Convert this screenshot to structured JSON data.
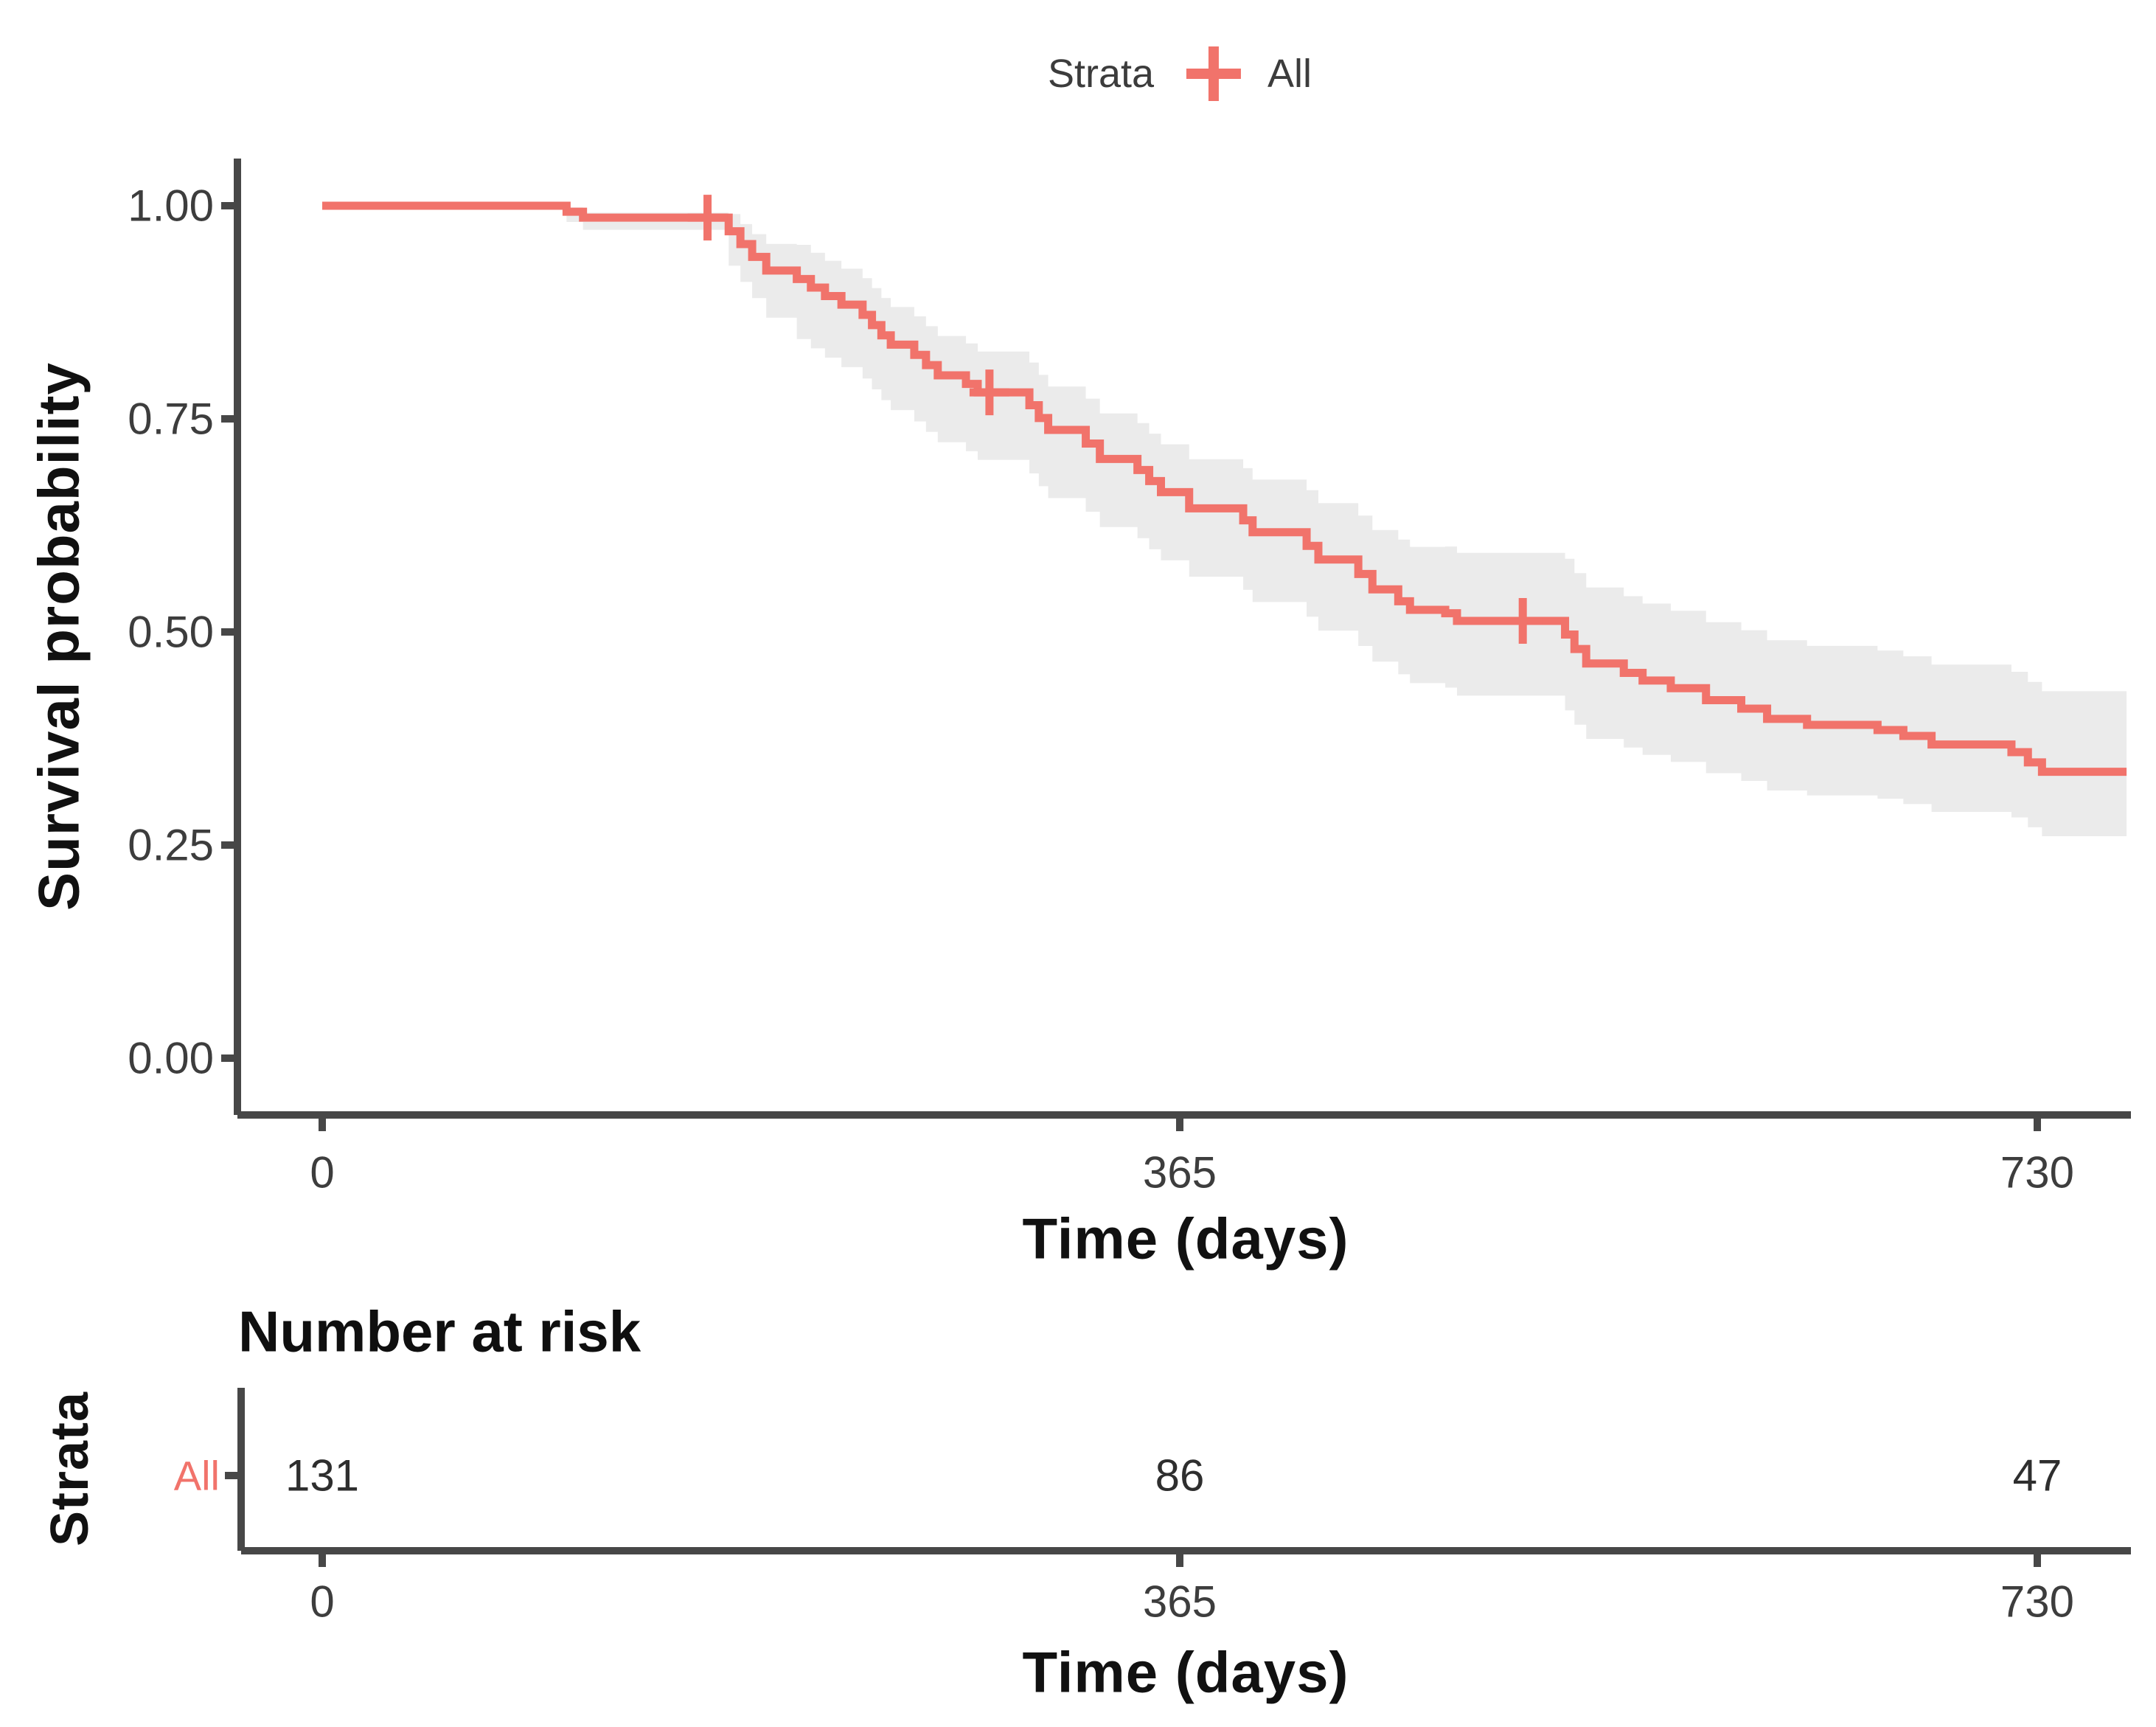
{
  "legend": {
    "title": "Strata",
    "items": [
      {
        "label": "All",
        "symbol": "plus",
        "color": "#f1736b"
      }
    ]
  },
  "y_axis": {
    "title": "Survival probability",
    "tick_labels": [
      "1.00",
      "0.75",
      "0.50",
      "0.25",
      "0.00"
    ],
    "tick_values": [
      1.0,
      0.75,
      0.5,
      0.25,
      0.0
    ]
  },
  "x_axis": {
    "title": "Time (days)",
    "tick_labels": [
      "0",
      "365",
      "730"
    ],
    "tick_values": [
      0,
      365,
      730
    ]
  },
  "risk_table": {
    "title": "Number at risk",
    "y_label": "Strata",
    "rows": [
      {
        "label": "All",
        "color": "#f1736b",
        "values": [
          "131",
          "86",
          "47"
        ]
      }
    ],
    "x_axis": {
      "title": "Time (days)",
      "tick_labels": [
        "0",
        "365",
        "730"
      ],
      "tick_values": [
        0,
        365,
        730
      ]
    }
  },
  "chart_data": {
    "type": "line",
    "subtype": "kaplan-meier-step",
    "title": "",
    "xlabel": "Time (days)",
    "ylabel": "Survival probability",
    "xlim": [
      0,
      768
    ],
    "ylim": [
      0,
      1
    ],
    "x_ticks": [
      0,
      365,
      730
    ],
    "y_ticks": [
      1.0,
      0.75,
      0.5,
      0.25,
      0.0
    ],
    "grid": false,
    "legend_position": "top",
    "series": [
      {
        "name": "All",
        "color": "#f1736b",
        "end_time": 768,
        "points": [
          [
            0,
            1.0
          ],
          [
            104,
            0.993
          ],
          [
            111,
            0.986
          ],
          [
            173,
            0.97
          ],
          [
            178,
            0.955
          ],
          [
            183,
            0.94
          ],
          [
            189,
            0.924
          ],
          [
            202,
            0.914
          ],
          [
            208,
            0.904
          ],
          [
            214,
            0.894
          ],
          [
            221,
            0.884
          ],
          [
            230,
            0.872
          ],
          [
            234,
            0.86
          ],
          [
            238,
            0.848
          ],
          [
            242,
            0.837
          ],
          [
            252,
            0.825
          ],
          [
            257,
            0.813
          ],
          [
            262,
            0.801
          ],
          [
            274,
            0.791
          ],
          [
            279,
            0.781
          ],
          [
            301,
            0.766
          ],
          [
            305,
            0.751
          ],
          [
            309,
            0.737
          ],
          [
            325,
            0.721
          ],
          [
            331,
            0.703
          ],
          [
            347,
            0.69
          ],
          [
            352,
            0.677
          ],
          [
            357,
            0.664
          ],
          [
            369,
            0.645
          ],
          [
            392,
            0.631
          ],
          [
            396,
            0.617
          ],
          [
            419,
            0.601
          ],
          [
            424,
            0.585
          ],
          [
            441,
            0.568
          ],
          [
            447,
            0.55
          ],
          [
            458,
            0.536
          ],
          [
            463,
            0.526
          ],
          [
            478,
            0.522
          ],
          [
            483,
            0.513
          ],
          [
            529,
            0.497
          ],
          [
            533,
            0.48
          ],
          [
            538,
            0.463
          ],
          [
            554,
            0.452
          ],
          [
            562,
            0.443
          ],
          [
            574,
            0.434
          ],
          [
            589,
            0.42
          ],
          [
            604,
            0.41
          ],
          [
            615,
            0.398
          ],
          [
            632,
            0.391
          ],
          [
            662,
            0.385
          ],
          [
            673,
            0.378
          ],
          [
            685,
            0.368
          ],
          [
            719,
            0.359
          ],
          [
            726,
            0.347
          ],
          [
            732,
            0.336
          ]
        ],
        "censor_marks": [
          [
            164,
            0.986
          ],
          [
            284,
            0.781
          ],
          [
            511,
            0.513
          ]
        ]
      }
    ],
    "confidence_band": {
      "color": "#ebebeb",
      "start_time": 104,
      "width_anchors": [
        [
          104,
          0.005,
          0.012
        ],
        [
          160,
          0.012,
          0.03
        ],
        [
          185,
          0.028,
          0.05
        ],
        [
          200,
          0.04,
          0.07
        ],
        [
          250,
          0.045,
          0.078
        ],
        [
          300,
          0.05,
          0.08
        ],
        [
          365,
          0.057,
          0.08
        ],
        [
          450,
          0.07,
          0.085
        ],
        [
          511,
          0.088,
          0.09
        ],
        [
          600,
          0.092,
          0.085
        ],
        [
          700,
          0.094,
          0.078
        ],
        [
          768,
          0.095,
          0.073
        ]
      ]
    },
    "risk_table": {
      "title": "Number at risk",
      "strata": [
        "All"
      ],
      "times": [
        0,
        365,
        730
      ],
      "at_risk": [
        [
          131,
          86,
          47
        ]
      ]
    }
  }
}
